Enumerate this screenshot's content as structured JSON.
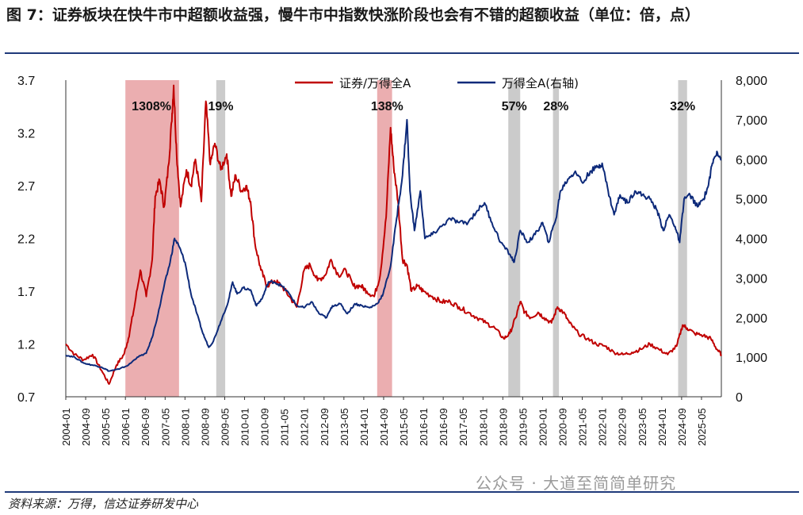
{
  "title": "图 7：证券板块在快牛市中超额收益强，慢牛市中指数快涨阶段也会有不错的超额收益（单位：倍，点）",
  "source": "资料来源：万得，信达证券研发中心",
  "watermark": "公众号 · 大道至简简单研究",
  "colors": {
    "ratio": "#c00000",
    "index": "#0d2a7a",
    "shade_red": "#e7a0a2",
    "shade_gray": "#c8c8c8",
    "rule": "#1f3a7a"
  },
  "chart_data": {
    "type": "line",
    "left_axis": {
      "ticks": [
        "3.7",
        "3.2",
        "2.7",
        "2.2",
        "1.7",
        "1.2",
        "0.7"
      ],
      "range": [
        0.7,
        3.7
      ]
    },
    "right_axis": {
      "ticks": [
        "8,000",
        "7,000",
        "6,000",
        "5,000",
        "4,000",
        "3,000",
        "2,000",
        "1,000",
        "0"
      ],
      "range": [
        0,
        8000
      ]
    },
    "x_ticks": [
      "2004-01",
      "2004-09",
      "2005-05",
      "2006-01",
      "2006-09",
      "2007-05",
      "2008-01",
      "2008-09",
      "2009-05",
      "2010-01",
      "2010-09",
      "2011-05",
      "2012-01",
      "2012-09",
      "2013-05",
      "2014-01",
      "2014-09",
      "2015-05",
      "2016-01",
      "2016-09",
      "2017-05",
      "2018-01",
      "2018-09",
      "2019-05",
      "2020-01",
      "2020-09",
      "2021-05",
      "2022-01",
      "2022-09",
      "2023-05",
      "2024-01",
      "2024-09",
      "2025-05"
    ],
    "legend": [
      "证券/万得全A",
      "万得全A(右轴)"
    ],
    "shaded_periods": [
      {
        "start": 2006.0,
        "end": 2007.8,
        "color": "red",
        "label": "1308%"
      },
      {
        "start": 2009.05,
        "end": 2009.35,
        "color": "gray",
        "label": "19%"
      },
      {
        "start": 2014.45,
        "end": 2014.95,
        "color": "red",
        "label": "138%"
      },
      {
        "start": 2018.85,
        "end": 2019.25,
        "color": "gray",
        "label": "57%"
      },
      {
        "start": 2020.35,
        "end": 2020.55,
        "color": "gray",
        "label": "28%"
      },
      {
        "start": 2024.55,
        "end": 2024.85,
        "color": "gray",
        "label": "32%"
      }
    ],
    "series": [
      {
        "name": "证券/万得全A",
        "axis": "left",
        "points": [
          [
            2004.0,
            1.2
          ],
          [
            2004.3,
            1.1
          ],
          [
            2004.6,
            1.05
          ],
          [
            2004.9,
            1.1
          ],
          [
            2005.2,
            0.95
          ],
          [
            2005.45,
            0.82
          ],
          [
            2005.7,
            1.0
          ],
          [
            2005.95,
            1.1
          ],
          [
            2006.1,
            1.25
          ],
          [
            2006.3,
            1.55
          ],
          [
            2006.5,
            1.9
          ],
          [
            2006.7,
            1.65
          ],
          [
            2006.9,
            2.0
          ],
          [
            2007.0,
            2.6
          ],
          [
            2007.15,
            2.75
          ],
          [
            2007.3,
            2.5
          ],
          [
            2007.45,
            2.9
          ],
          [
            2007.55,
            3.3
          ],
          [
            2007.62,
            3.65
          ],
          [
            2007.72,
            3.0
          ],
          [
            2007.85,
            2.5
          ],
          [
            2008.05,
            2.85
          ],
          [
            2008.2,
            2.7
          ],
          [
            2008.35,
            2.95
          ],
          [
            2008.55,
            2.55
          ],
          [
            2008.7,
            3.5
          ],
          [
            2008.85,
            2.9
          ],
          [
            2009.0,
            3.1
          ],
          [
            2009.2,
            2.85
          ],
          [
            2009.4,
            3.0
          ],
          [
            2009.55,
            2.6
          ],
          [
            2009.7,
            2.8
          ],
          [
            2009.9,
            2.65
          ],
          [
            2010.05,
            2.7
          ],
          [
            2010.2,
            2.55
          ],
          [
            2010.35,
            2.15
          ],
          [
            2010.55,
            1.9
          ],
          [
            2010.75,
            1.75
          ],
          [
            2011.0,
            1.8
          ],
          [
            2011.25,
            1.75
          ],
          [
            2011.5,
            1.65
          ],
          [
            2011.75,
            1.55
          ],
          [
            2012.0,
            1.9
          ],
          [
            2012.2,
            1.95
          ],
          [
            2012.45,
            1.8
          ],
          [
            2012.7,
            1.85
          ],
          [
            2012.9,
            2.0
          ],
          [
            2013.15,
            1.85
          ],
          [
            2013.4,
            1.9
          ],
          [
            2013.65,
            1.75
          ],
          [
            2013.9,
            1.75
          ],
          [
            2014.1,
            1.7
          ],
          [
            2014.35,
            1.65
          ],
          [
            2014.55,
            1.85
          ],
          [
            2014.75,
            2.4
          ],
          [
            2014.9,
            3.25
          ],
          [
            2015.0,
            2.9
          ],
          [
            2015.15,
            2.55
          ],
          [
            2015.3,
            2.0
          ],
          [
            2015.45,
            1.95
          ],
          [
            2015.6,
            1.7
          ],
          [
            2015.8,
            1.75
          ],
          [
            2016.0,
            1.7
          ],
          [
            2016.3,
            1.65
          ],
          [
            2016.6,
            1.6
          ],
          [
            2016.9,
            1.6
          ],
          [
            2017.2,
            1.55
          ],
          [
            2017.5,
            1.5
          ],
          [
            2017.8,
            1.45
          ],
          [
            2018.1,
            1.4
          ],
          [
            2018.4,
            1.35
          ],
          [
            2018.7,
            1.25
          ],
          [
            2018.9,
            1.3
          ],
          [
            2019.1,
            1.45
          ],
          [
            2019.25,
            1.6
          ],
          [
            2019.4,
            1.5
          ],
          [
            2019.6,
            1.45
          ],
          [
            2019.85,
            1.5
          ],
          [
            2020.05,
            1.45
          ],
          [
            2020.3,
            1.4
          ],
          [
            2020.5,
            1.55
          ],
          [
            2020.7,
            1.5
          ],
          [
            2020.9,
            1.4
          ],
          [
            2021.2,
            1.3
          ],
          [
            2021.5,
            1.25
          ],
          [
            2021.8,
            1.2
          ],
          [
            2022.1,
            1.18
          ],
          [
            2022.4,
            1.12
          ],
          [
            2022.7,
            1.1
          ],
          [
            2023.0,
            1.12
          ],
          [
            2023.3,
            1.15
          ],
          [
            2023.6,
            1.2
          ],
          [
            2023.9,
            1.15
          ],
          [
            2024.2,
            1.1
          ],
          [
            2024.5,
            1.18
          ],
          [
            2024.7,
            1.38
          ],
          [
            2024.85,
            1.35
          ],
          [
            2025.1,
            1.3
          ],
          [
            2025.4,
            1.28
          ],
          [
            2025.65,
            1.25
          ],
          [
            2025.85,
            1.15
          ],
          [
            2026.0,
            1.1
          ]
        ]
      },
      {
        "name": "万得全A(右轴)",
        "axis": "right",
        "points": [
          [
            2004.0,
            1050
          ],
          [
            2004.3,
            1000
          ],
          [
            2004.6,
            850
          ],
          [
            2004.9,
            800
          ],
          [
            2005.2,
            750
          ],
          [
            2005.45,
            650
          ],
          [
            2005.8,
            700
          ],
          [
            2006.1,
            800
          ],
          [
            2006.4,
            1000
          ],
          [
            2006.7,
            1100
          ],
          [
            2006.9,
            1500
          ],
          [
            2007.1,
            2100
          ],
          [
            2007.3,
            2800
          ],
          [
            2007.5,
            3400
          ],
          [
            2007.65,
            4000
          ],
          [
            2007.8,
            3800
          ],
          [
            2008.0,
            3400
          ],
          [
            2008.2,
            2600
          ],
          [
            2008.4,
            2100
          ],
          [
            2008.6,
            1600
          ],
          [
            2008.8,
            1250
          ],
          [
            2008.95,
            1400
          ],
          [
            2009.2,
            1900
          ],
          [
            2009.45,
            2400
          ],
          [
            2009.6,
            2900
          ],
          [
            2009.75,
            2600
          ],
          [
            2009.95,
            2750
          ],
          [
            2010.2,
            2700
          ],
          [
            2010.4,
            2300
          ],
          [
            2010.6,
            2500
          ],
          [
            2010.8,
            2900
          ],
          [
            2011.0,
            2900
          ],
          [
            2011.25,
            2800
          ],
          [
            2011.5,
            2600
          ],
          [
            2011.75,
            2300
          ],
          [
            2012.0,
            2250
          ],
          [
            2012.25,
            2400
          ],
          [
            2012.5,
            2100
          ],
          [
            2012.75,
            2000
          ],
          [
            2012.95,
            2300
          ],
          [
            2013.2,
            2350
          ],
          [
            2013.45,
            2100
          ],
          [
            2013.7,
            2350
          ],
          [
            2013.95,
            2300
          ],
          [
            2014.2,
            2250
          ],
          [
            2014.45,
            2350
          ],
          [
            2014.65,
            2600
          ],
          [
            2014.9,
            3300
          ],
          [
            2015.1,
            4500
          ],
          [
            2015.3,
            5600
          ],
          [
            2015.45,
            7000
          ],
          [
            2015.55,
            5200
          ],
          [
            2015.7,
            4200
          ],
          [
            2015.9,
            5200
          ],
          [
            2016.05,
            4000
          ],
          [
            2016.3,
            4100
          ],
          [
            2016.6,
            4300
          ],
          [
            2016.9,
            4500
          ],
          [
            2017.2,
            4400
          ],
          [
            2017.5,
            4400
          ],
          [
            2017.8,
            4700
          ],
          [
            2018.05,
            4900
          ],
          [
            2018.3,
            4400
          ],
          [
            2018.6,
            3900
          ],
          [
            2018.9,
            3600
          ],
          [
            2019.05,
            3400
          ],
          [
            2019.25,
            4200
          ],
          [
            2019.5,
            3900
          ],
          [
            2019.75,
            4100
          ],
          [
            2020.0,
            4400
          ],
          [
            2020.2,
            3900
          ],
          [
            2020.45,
            4500
          ],
          [
            2020.6,
            5200
          ],
          [
            2020.85,
            5500
          ],
          [
            2021.1,
            5700
          ],
          [
            2021.35,
            5400
          ],
          [
            2021.6,
            5700
          ],
          [
            2021.85,
            5800
          ],
          [
            2022.0,
            5900
          ],
          [
            2022.2,
            5200
          ],
          [
            2022.4,
            4600
          ],
          [
            2022.6,
            5100
          ],
          [
            2022.85,
            4900
          ],
          [
            2023.1,
            5200
          ],
          [
            2023.35,
            5100
          ],
          [
            2023.6,
            5000
          ],
          [
            2023.85,
            4700
          ],
          [
            2024.05,
            4200
          ],
          [
            2024.25,
            4600
          ],
          [
            2024.45,
            4300
          ],
          [
            2024.6,
            3900
          ],
          [
            2024.75,
            5000
          ],
          [
            2024.95,
            5100
          ],
          [
            2025.2,
            4800
          ],
          [
            2025.4,
            5000
          ],
          [
            2025.55,
            5300
          ],
          [
            2025.7,
            5900
          ],
          [
            2025.85,
            6200
          ],
          [
            2026.0,
            6000
          ]
        ]
      }
    ]
  }
}
